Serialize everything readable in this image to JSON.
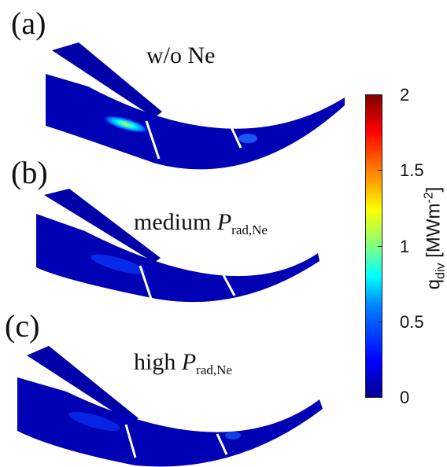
{
  "panels": [
    {
      "letter": "(a)",
      "title_plain": "w/o Ne",
      "title_italic": "",
      "title_sub": ""
    },
    {
      "letter": "(b)",
      "title_plain": "medium ",
      "title_italic": "P",
      "title_sub": "rad,Ne"
    },
    {
      "letter": "(c)",
      "title_plain": "high ",
      "title_italic": "P",
      "title_sub": "rad,Ne"
    }
  ],
  "colorbar": {
    "label_main": "q",
    "label_sub": "div",
    "label_unit_open": " [MWm",
    "label_unit_sup": "-2",
    "label_unit_close": "]",
    "ticks": [
      "2",
      "1.5",
      "1",
      "0.5",
      "0"
    ],
    "range": [
      0,
      2
    ],
    "colormap": "jet"
  },
  "colors": {
    "background_level": "#0000a0"
  }
}
